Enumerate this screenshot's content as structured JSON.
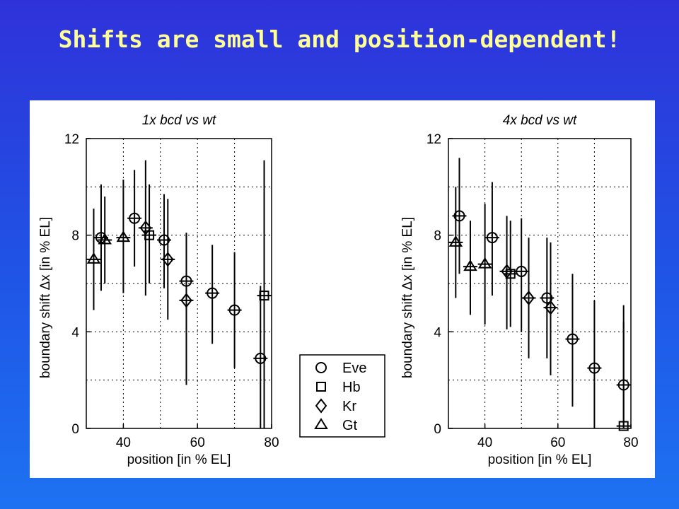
{
  "slide": {
    "title": "Shifts are small and position-dependent!"
  },
  "chart_data": [
    {
      "type": "scatter",
      "title": "1x bcd vs wt",
      "xlabel": "position [in % EL]",
      "ylabel": "boundary shift Δx [in % EL]",
      "xlim": [
        30,
        80
      ],
      "ylim": [
        0,
        12
      ],
      "xticks": [
        40,
        60,
        80
      ],
      "yticks": [
        0,
        4,
        8,
        12
      ],
      "grid": true,
      "series": [
        {
          "name": "Eve",
          "marker": "circle",
          "points": [
            {
              "x": 34,
              "y": 7.9,
              "lo": 5.7,
              "hi": 10.1
            },
            {
              "x": 43,
              "y": 8.7,
              "lo": 6.7,
              "hi": 10.7
            },
            {
              "x": 51,
              "y": 7.8,
              "lo": 5.8,
              "hi": 9.7
            },
            {
              "x": 57,
              "y": 6.1,
              "lo": 4.1,
              "hi": 8.1
            },
            {
              "x": 64,
              "y": 5.6,
              "lo": 3.5,
              "hi": 7.6
            },
            {
              "x": 70,
              "y": 4.9,
              "lo": 2.5,
              "hi": 7.3
            },
            {
              "x": 77,
              "y": 2.9,
              "lo": 0.0,
              "hi": 5.9
            }
          ]
        },
        {
          "name": "Hb",
          "marker": "square",
          "points": [
            {
              "x": 47,
              "y": 8.0,
              "lo": 6.0,
              "hi": 10.1
            },
            {
              "x": 78,
              "y": 5.5,
              "lo": 0.0,
              "hi": 11.1
            }
          ]
        },
        {
          "name": "Kr",
          "marker": "diamond",
          "points": [
            {
              "x": 46,
              "y": 8.3,
              "lo": 5.5,
              "hi": 11.1
            },
            {
              "x": 52,
              "y": 7.0,
              "lo": 4.5,
              "hi": 9.5
            },
            {
              "x": 57,
              "y": 5.3,
              "lo": 1.8,
              "hi": 8.1
            }
          ]
        },
        {
          "name": "Gt",
          "marker": "triangle",
          "points": [
            {
              "x": 32,
              "y": 7.0,
              "lo": 4.9,
              "hi": 9.1
            },
            {
              "x": 35,
              "y": 7.8,
              "lo": 6.0,
              "hi": 9.6
            },
            {
              "x": 40,
              "y": 7.9,
              "lo": 5.6,
              "hi": 10.3
            }
          ]
        }
      ]
    },
    {
      "type": "scatter",
      "title": "4x bcd vs wt",
      "xlabel": "position [in % EL]",
      "ylabel": "boundary shift Δx [in % EL]",
      "xlim": [
        30,
        80
      ],
      "ylim": [
        0,
        12
      ],
      "xticks": [
        40,
        60,
        80
      ],
      "yticks": [
        0,
        4,
        8,
        12
      ],
      "grid": true,
      "series": [
        {
          "name": "Eve",
          "marker": "circle",
          "points": [
            {
              "x": 33,
              "y": 8.8,
              "lo": 6.4,
              "hi": 11.2
            },
            {
              "x": 42,
              "y": 7.9,
              "lo": 5.5,
              "hi": 10.2
            },
            {
              "x": 50,
              "y": 6.5,
              "lo": 4.0,
              "hi": 8.7
            },
            {
              "x": 57,
              "y": 5.4,
              "lo": 2.9,
              "hi": 7.9
            },
            {
              "x": 64,
              "y": 3.7,
              "lo": 0.9,
              "hi": 6.4
            },
            {
              "x": 70,
              "y": 2.5,
              "lo": 0.0,
              "hi": 5.3
            },
            {
              "x": 78,
              "y": 1.8,
              "lo": 0.0,
              "hi": 5.1
            }
          ]
        },
        {
          "name": "Hb",
          "marker": "square",
          "points": [
            {
              "x": 47,
              "y": 6.4,
              "lo": 4.2,
              "hi": 8.6
            },
            {
              "x": 78,
              "y": 0.1,
              "lo": 0.0,
              "hi": 4.4
            }
          ]
        },
        {
          "name": "Kr",
          "marker": "diamond",
          "points": [
            {
              "x": 46,
              "y": 6.5,
              "lo": 4.1,
              "hi": 8.8
            },
            {
              "x": 52,
              "y": 5.4,
              "lo": 2.9,
              "hi": 7.9
            },
            {
              "x": 58,
              "y": 5.0,
              "lo": 2.2,
              "hi": 7.7
            }
          ]
        },
        {
          "name": "Gt",
          "marker": "triangle",
          "points": [
            {
              "x": 32,
              "y": 7.7,
              "lo": 5.4,
              "hi": 10.0
            },
            {
              "x": 36,
              "y": 6.7,
              "lo": 4.7,
              "hi": 8.6
            },
            {
              "x": 40,
              "y": 6.8,
              "lo": 4.3,
              "hi": 9.3
            }
          ]
        }
      ]
    }
  ],
  "legend": {
    "placement": "between-panels-bottom",
    "entries": [
      {
        "label": "Eve",
        "marker": "circle"
      },
      {
        "label": "Hb",
        "marker": "square"
      },
      {
        "label": "Kr",
        "marker": "diamond"
      },
      {
        "label": "Gt",
        "marker": "triangle"
      }
    ]
  }
}
